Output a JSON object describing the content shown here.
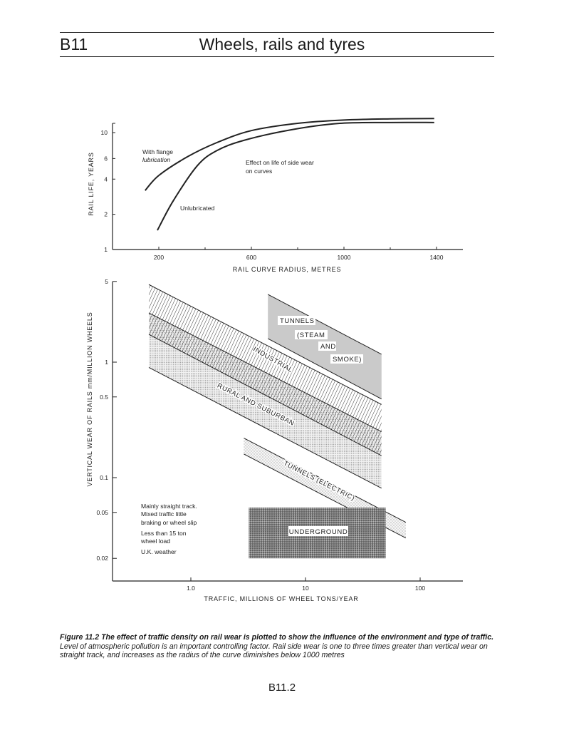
{
  "header": {
    "code": "B11",
    "title": "Wheels, rails and tyres"
  },
  "caption": {
    "bold": "Figure 11.2  The effect of traffic density on rail wear is plotted to show the influence of the environment and type of traffic.",
    "text": " Level of atmospheric pollution is an important controlling factor. Rail side wear is one to three times greater than vertical wear on straight track, and increases as the radius of the curve diminishes below 1000 metres"
  },
  "page_number": "B11.2",
  "chart_data": [
    {
      "type": "line",
      "title": "",
      "xlabel": "RAIL CURVE RADIUS, METRES",
      "ylabel": "RAIL LIFE, YEARS",
      "yscale": "log",
      "xlim": [
        0,
        1500
      ],
      "ylim": [
        1,
        12
      ],
      "xticks": [
        200,
        600,
        1000,
        1400
      ],
      "xminor": [
        400,
        800,
        1200
      ],
      "yticks": [
        1,
        2,
        4,
        6,
        10
      ],
      "series": [
        {
          "name": "With flange lubrication",
          "label_lines": [
            "With flange",
            "lubrication"
          ],
          "x": [
            141,
            200,
            323,
            450,
            600,
            800,
            1000,
            1200,
            1390
          ],
          "y": [
            3.2,
            4.3,
            6.2,
            8.2,
            10.4,
            12.0,
            12.8,
            13.1,
            13.2
          ]
        },
        {
          "name": "Unlubricated",
          "label_lines": [
            "Unlubricated"
          ],
          "x": [
            194,
            262,
            366,
            450,
            569,
            775,
            982,
            1200,
            1390
          ],
          "y": [
            1.46,
            2.6,
            5.2,
            7.0,
            8.6,
            10.6,
            12.0,
            12.2,
            12.2
          ]
        }
      ],
      "annotation": [
        "Effect on life of side wear",
        "on curves"
      ]
    },
    {
      "type": "area",
      "title": "",
      "xlabel": "TRAFFIC, MILLIONS OF WHEEL TONS/YEAR",
      "ylabel": "VERTICAL WEAR OF RAILS mm/MILLION WHEELS",
      "xscale": "log",
      "yscale": "log",
      "xlim": [
        0.2,
        180
      ],
      "ylim": [
        0.013,
        5
      ],
      "xticks": [
        {
          "v": 1,
          "label": "1.0"
        },
        {
          "v": 10,
          "label": "10"
        },
        {
          "v": 100,
          "label": "100"
        }
      ],
      "yticks": [
        {
          "v": 5,
          "label": "5"
        },
        {
          "v": 1,
          "label": "1"
        },
        {
          "v": 0.5,
          "label": "0.5"
        },
        {
          "v": 0.1,
          "label": "0.1"
        },
        {
          "v": 0.05,
          "label": "0.05"
        },
        {
          "v": 0.02,
          "label": "0.02"
        }
      ],
      "bands": [
        {
          "name": "Rural and suburban",
          "label": "RURAL AND SUBURBAN",
          "fill": "dots",
          "x": [
            0.43,
            46
          ],
          "upper": [
            2.67,
            0.25
          ],
          "lower": [
            0.9,
            0.081
          ]
        },
        {
          "name": "Industrial",
          "label": "INDUSTRIAL",
          "fill": "hatch",
          "x": [
            0.43,
            46
          ],
          "upper": [
            4.7,
            0.43
          ],
          "lower": [
            1.74,
            0.155
          ]
        },
        {
          "name": "Tunnels (steam and smoke)",
          "label_lines": [
            "TUNNELS",
            "(STEAM",
            "AND",
            "SMOKE)"
          ],
          "fill": "grey",
          "x": [
            4.7,
            46
          ],
          "upper": [
            3.86,
            1.17
          ],
          "lower": [
            1.6,
            0.48
          ]
        },
        {
          "name": "Tunnels (electric)",
          "label": "TUNNELS (ELECTRIC)",
          "fill": "sparse",
          "x": [
            2.9,
            75
          ],
          "upper": [
            0.22,
            0.041
          ],
          "lower": [
            0.16,
            0.03
          ]
        },
        {
          "name": "Underground",
          "label": "UNDERGROUND",
          "fill": "dark",
          "x": [
            3.2,
            50
          ],
          "upper": [
            0.055,
            0.055
          ],
          "lower": [
            0.02,
            0.02
          ]
        }
      ],
      "notes": [
        "Mainly straight track.",
        "Mixed traffic little",
        "braking or wheel slip",
        "Less than 15 ton",
        "wheel load",
        "U.K. weather"
      ]
    }
  ]
}
